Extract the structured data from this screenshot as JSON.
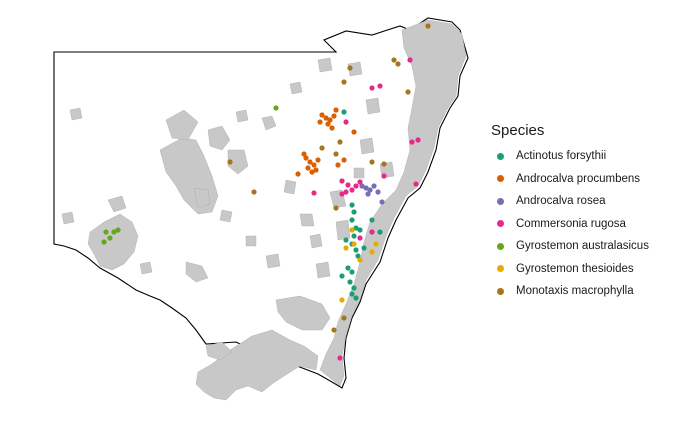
{
  "legend": {
    "title": "Species",
    "items": [
      {
        "label": "Actinotus forsythii",
        "color": "#1b9e77"
      },
      {
        "label": "Androcalva procumbens",
        "color": "#d95f02"
      },
      {
        "label": "Androcalva rosea",
        "color": "#7570b3"
      },
      {
        "label": "Commersonia rugosa",
        "color": "#e7298a"
      },
      {
        "label": "Gyrostemon australasicus",
        "color": "#66a61e"
      },
      {
        "label": "Gyrostemon thesioides",
        "color": "#e6ab02"
      },
      {
        "label": "Monotaxis macrophylla",
        "color": "#a6761d"
      }
    ]
  },
  "map_colors": {
    "region_fill": "#ffffff",
    "region_stroke": "#000000",
    "habitat_fill": "#c8c8c8"
  }
}
